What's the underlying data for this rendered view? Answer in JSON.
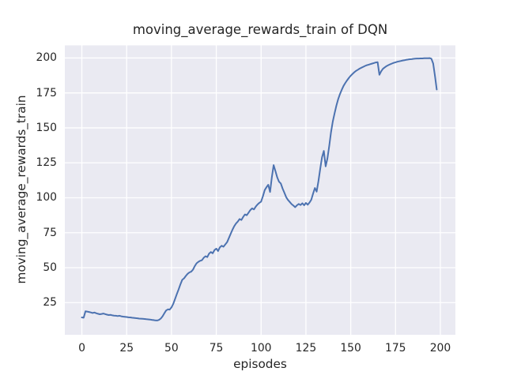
{
  "figure": {
    "title": "moving_average_rewards_train of DQN"
  },
  "chart_data": {
    "type": "line",
    "title": "moving_average_rewards_train of DQN",
    "xlabel": "episodes",
    "ylabel": "moving_average_rewards_train",
    "x_ticks": [
      0,
      25,
      50,
      75,
      100,
      125,
      150,
      175,
      200
    ],
    "y_ticks": [
      25,
      50,
      75,
      100,
      125,
      150,
      175,
      200
    ],
    "xlim": [
      -9.5,
      208.4
    ],
    "ylim": [
      2,
      209
    ],
    "grid": true,
    "legend": false,
    "style": "seaborn-darkgrid",
    "colors": {
      "line": "#4C72B0",
      "axes_background": "#EAEAF2",
      "grid": "#FFFFFF",
      "text": "#262626",
      "figure_background": "#FFFFFF"
    },
    "series": [
      {
        "name": "moving_average_rewards_train",
        "x": [
          0,
          1,
          2,
          3,
          4,
          5,
          6,
          7,
          8,
          9,
          10,
          11,
          12,
          13,
          14,
          15,
          16,
          17,
          18,
          19,
          20,
          21,
          22,
          23,
          24,
          25,
          26,
          27,
          28,
          29,
          30,
          31,
          32,
          33,
          34,
          35,
          36,
          37,
          38,
          39,
          40,
          41,
          42,
          43,
          44,
          45,
          46,
          47,
          48,
          49,
          50,
          51,
          52,
          53,
          54,
          55,
          56,
          57,
          58,
          59,
          60,
          61,
          62,
          63,
          64,
          65,
          66,
          67,
          68,
          69,
          70,
          71,
          72,
          73,
          74,
          75,
          76,
          77,
          78,
          79,
          80,
          81,
          82,
          83,
          84,
          85,
          86,
          87,
          88,
          89,
          90,
          91,
          92,
          93,
          94,
          95,
          96,
          97,
          98,
          99,
          100,
          101,
          102,
          103,
          104,
          105,
          106,
          107,
          108,
          109,
          110,
          111,
          112,
          113,
          114,
          115,
          116,
          117,
          118,
          119,
          120,
          121,
          122,
          123,
          124,
          125,
          126,
          127,
          128,
          129,
          130,
          131,
          132,
          133,
          134,
          135,
          136,
          137,
          138,
          139,
          140,
          141,
          142,
          143,
          144,
          145,
          146,
          147,
          148,
          149,
          150,
          151,
          152,
          153,
          154,
          155,
          156,
          157,
          158,
          159,
          160,
          161,
          162,
          163,
          164,
          165,
          166,
          167,
          168,
          169,
          170,
          171,
          172,
          173,
          174,
          175,
          176,
          177,
          178,
          179,
          180,
          181,
          182,
          183,
          184,
          185,
          186,
          187,
          188,
          189,
          190,
          191,
          192,
          193,
          194,
          195,
          196,
          197,
          198
        ],
        "y": [
          14.4,
          14.2,
          18.8,
          18.6,
          18.3,
          18.0,
          17.6,
          17.9,
          17.4,
          17.0,
          16.7,
          16.9,
          17.2,
          16.8,
          16.4,
          16.1,
          16.3,
          15.9,
          15.7,
          15.6,
          15.4,
          15.6,
          15.2,
          15.0,
          14.9,
          14.7,
          14.5,
          14.4,
          14.2,
          14.1,
          13.9,
          13.8,
          13.6,
          13.5,
          13.4,
          13.3,
          13.1,
          13.0,
          12.9,
          12.7,
          12.5,
          12.3,
          12.2,
          12.6,
          13.6,
          15.2,
          17.3,
          19.4,
          20.2,
          20.0,
          21.6,
          24.2,
          27.6,
          31.2,
          34.6,
          38.1,
          41.3,
          42.4,
          44.1,
          45.6,
          46.6,
          47.1,
          48.6,
          51.2,
          53.1,
          54.2,
          54.9,
          55.3,
          57.1,
          58.2,
          57.6,
          60.1,
          61.2,
          60.3,
          62.6,
          63.6,
          61.9,
          64.6,
          65.7,
          65.0,
          66.6,
          68.2,
          71.1,
          74.2,
          77.1,
          79.6,
          81.6,
          83.0,
          84.8,
          84.1,
          86.3,
          88.1,
          87.5,
          89.4,
          91.2,
          92.4,
          91.7,
          93.6,
          95.2,
          96.4,
          97.2,
          101.0,
          105.5,
          107.5,
          109.3,
          104.2,
          114.5,
          123.4,
          119.0,
          114.5,
          111.5,
          110.2,
          106.5,
          103.6,
          100.4,
          98.4,
          97.0,
          95.5,
          94.4,
          93.3,
          94.6,
          95.6,
          94.8,
          96.1,
          94.6,
          96.3,
          95.0,
          96.6,
          98.6,
          103.0,
          107.0,
          104.4,
          112.0,
          121.0,
          129.0,
          133.5,
          122.5,
          128.0,
          137.0,
          147.0,
          154.5,
          160.5,
          166.0,
          170.5,
          174.2,
          177.3,
          180.0,
          182.2,
          184.1,
          185.8,
          187.3,
          188.6,
          189.8,
          190.8,
          191.6,
          192.4,
          193.1,
          193.7,
          194.3,
          194.8,
          195.2,
          195.6,
          196.0,
          196.4,
          196.8,
          197.0,
          188.0,
          190.5,
          192.3,
          193.3,
          194.2,
          194.9,
          195.5,
          196.0,
          196.5,
          196.9,
          197.3,
          197.6,
          197.9,
          198.2,
          198.4,
          198.7,
          198.9,
          199.1,
          199.2,
          199.4,
          199.5,
          199.6,
          199.6,
          199.7,
          199.7,
          199.8,
          199.8,
          199.8,
          199.9,
          199.5,
          196.0,
          187.0,
          177.4
        ]
      }
    ]
  }
}
